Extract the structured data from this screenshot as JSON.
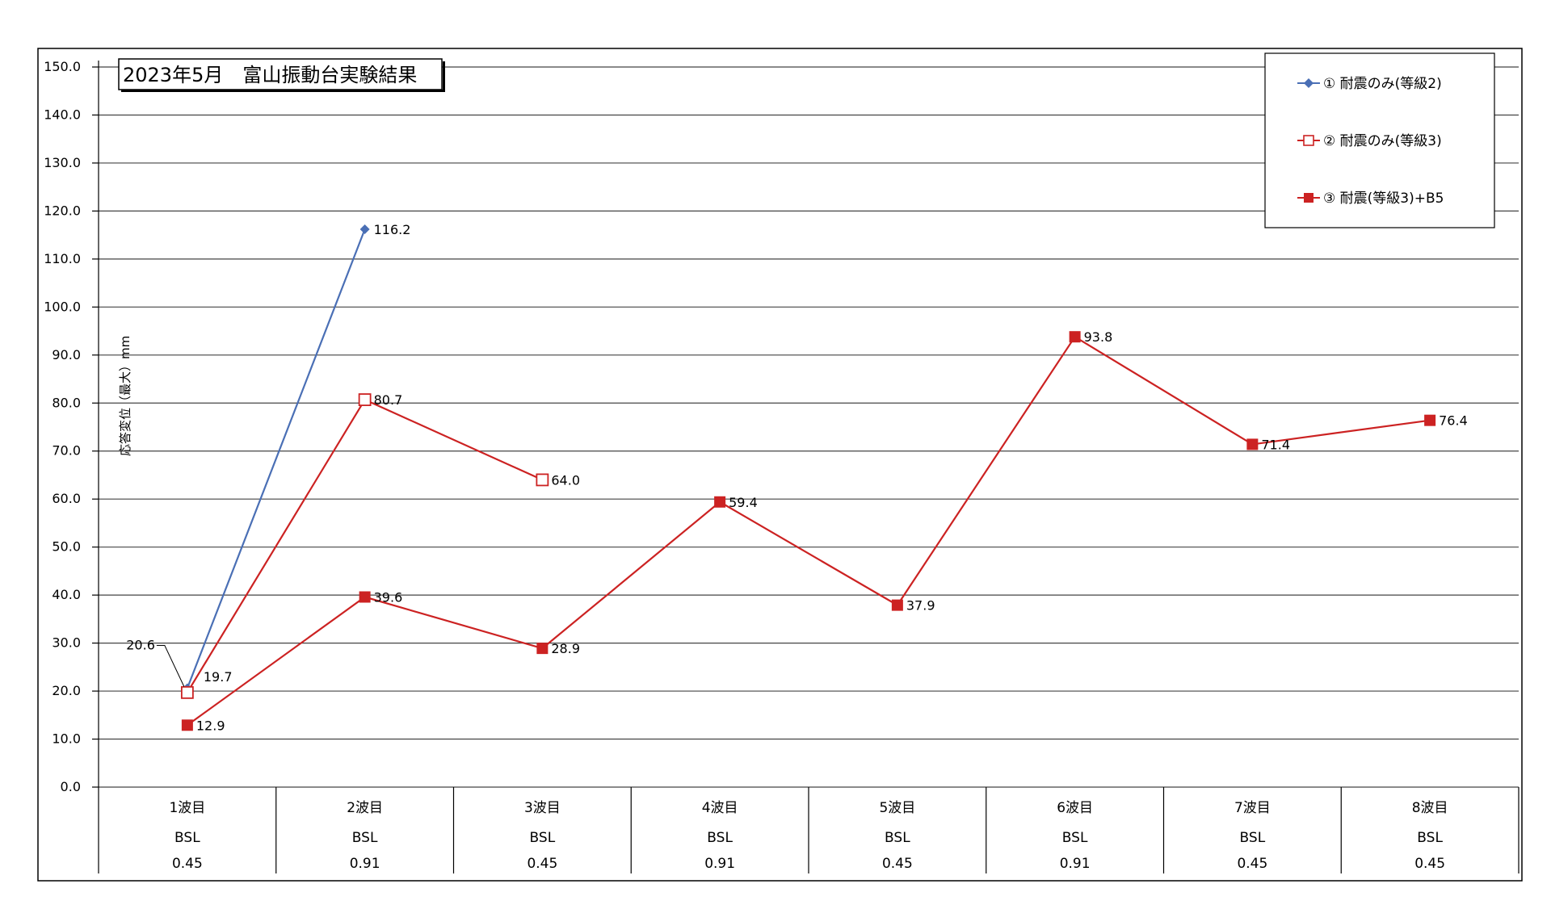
{
  "chart_data": {
    "type": "line",
    "title": "2023年5月　富山振動台実験結果",
    "ylabel": "応答変位（最大）mm",
    "xlabel": "",
    "ylim": [
      0,
      150
    ],
    "yticks": [
      "0.0",
      "10.0",
      "20.0",
      "30.0",
      "40.0",
      "50.0",
      "60.0",
      "70.0",
      "80.0",
      "90.0",
      "100.0",
      "110.0",
      "120.0",
      "130.0",
      "140.0",
      "150.0"
    ],
    "grid": true,
    "legend_position": "top-right",
    "categories": [
      {
        "wave": "1波目",
        "type": "BSL",
        "scale": "0.45"
      },
      {
        "wave": "2波目",
        "type": "BSL",
        "scale": "0.91"
      },
      {
        "wave": "3波目",
        "type": "BSL",
        "scale": "0.45"
      },
      {
        "wave": "4波目",
        "type": "BSL",
        "scale": "0.91"
      },
      {
        "wave": "5波目",
        "type": "BSL",
        "scale": "0.45"
      },
      {
        "wave": "6波目",
        "type": "BSL",
        "scale": "0.91"
      },
      {
        "wave": "7波目",
        "type": "BSL",
        "scale": "0.45"
      },
      {
        "wave": "8波目",
        "type": "BSL",
        "scale": "0.45"
      }
    ],
    "series": [
      {
        "name": "① 耐震のみ(等級2)",
        "color": "#4a6fb5",
        "marker": "diamond",
        "values": [
          20.6,
          116.2,
          null,
          null,
          null,
          null,
          null,
          null
        ],
        "labels": [
          "20.6",
          "116.2",
          "",
          "",
          "",
          "",
          "",
          ""
        ]
      },
      {
        "name": "② 耐震のみ(等級3)",
        "color": "#cc2222",
        "marker": "open-square",
        "values": [
          19.7,
          80.7,
          64.0,
          null,
          null,
          null,
          null,
          null
        ],
        "labels": [
          "19.7",
          "80.7",
          "64.0",
          "",
          "",
          "",
          "",
          ""
        ]
      },
      {
        "name": "③ 耐震(等級3)+B5",
        "color": "#cc2222",
        "marker": "filled-square",
        "values": [
          12.9,
          39.6,
          28.9,
          59.4,
          37.9,
          93.8,
          71.4,
          76.4
        ],
        "labels": [
          "12.9",
          "39.6",
          "28.9",
          "59.4",
          "37.9",
          "93.8",
          "71.4",
          "76.4"
        ]
      }
    ]
  }
}
